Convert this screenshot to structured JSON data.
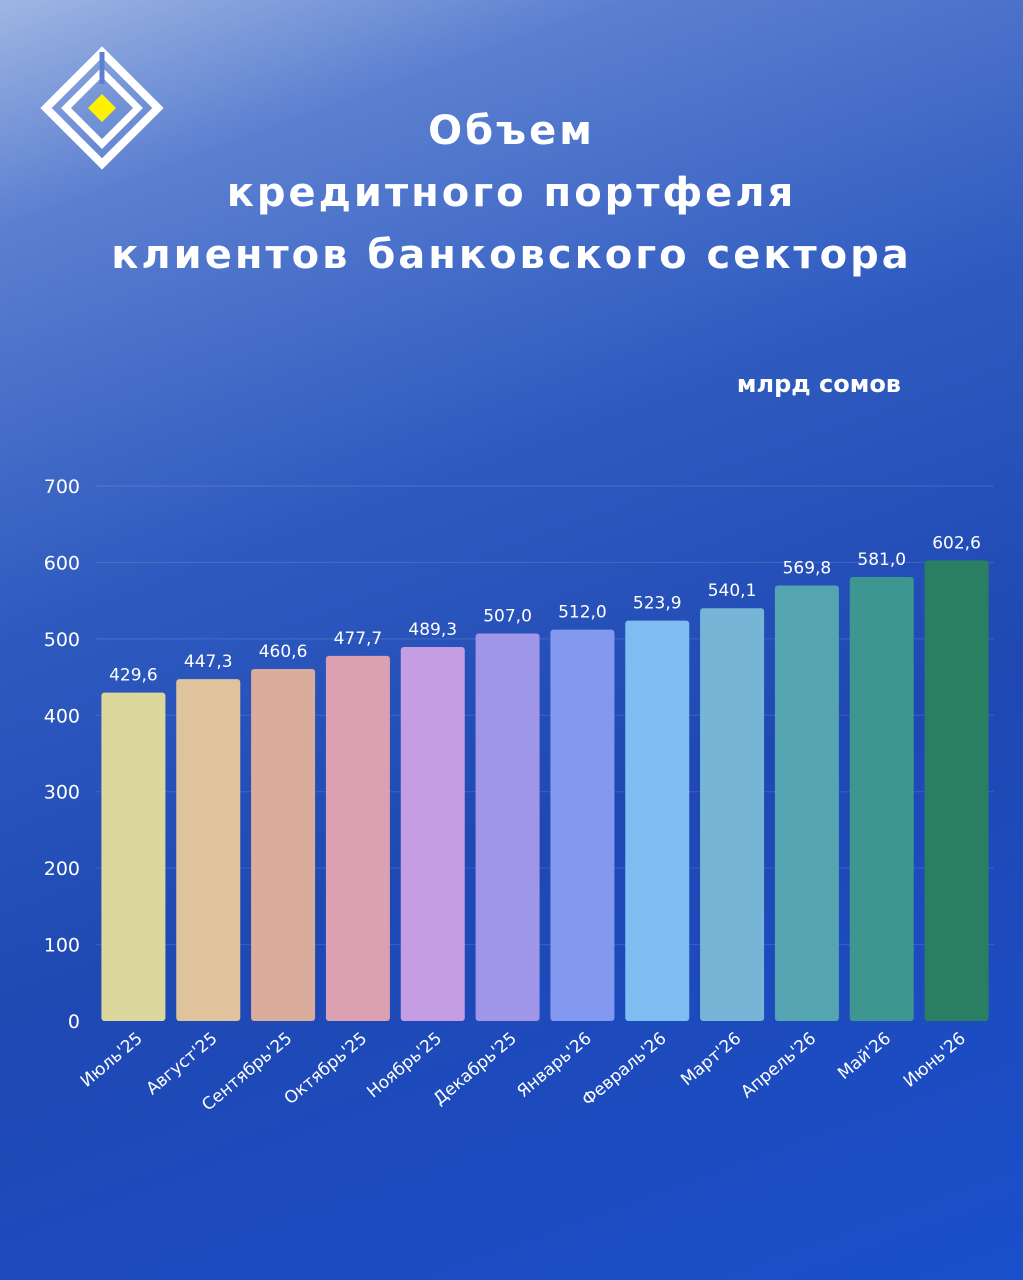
{
  "header": {
    "title_line1": "Объем",
    "title_line2": "кредитного портфеля",
    "title_line3": "клиентов банковского сектора",
    "unit": "млрд сомов"
  },
  "logo": {
    "icon": "diamond-logo-icon",
    "outer_color": "#ffffff",
    "inner_color": "#fff200"
  },
  "chart_data": {
    "type": "bar",
    "title": "Объем кредитного портфеля клиентов банковского сектора",
    "ylabel": "млрд сомов",
    "xlabel": "",
    "ylim": [
      0,
      700
    ],
    "yticks": [
      0,
      100,
      200,
      300,
      400,
      500,
      600,
      700
    ],
    "grid": true,
    "categories": [
      "Июль'25",
      "Август'25",
      "Сентябрь'25",
      "Октябрь'25",
      "Ноябрь'25",
      "Декабрь'25",
      "Январь'26",
      "Февраль'26",
      "Март'26",
      "Апрель'26",
      "Май'26",
      "Июнь'26"
    ],
    "values": [
      429.6,
      447.3,
      460.6,
      477.7,
      489.3,
      507.0,
      512.0,
      523.9,
      540.1,
      569.8,
      581.0,
      602.6
    ],
    "value_labels": [
      "429,6",
      "447,3",
      "460,6",
      "477,7",
      "489,3",
      "507,0",
      "512,0",
      "523,9",
      "540,1",
      "569,8",
      "581,0",
      "602,6"
    ],
    "bar_colors": [
      "#dcd79d",
      "#dfc39c",
      "#d9ac9b",
      "#dba1b3",
      "#c49de3",
      "#9f96ea",
      "#8399ef",
      "#7fbcef",
      "#77b5d6",
      "#55a4b2",
      "#3d968f",
      "#2a7f63"
    ]
  }
}
